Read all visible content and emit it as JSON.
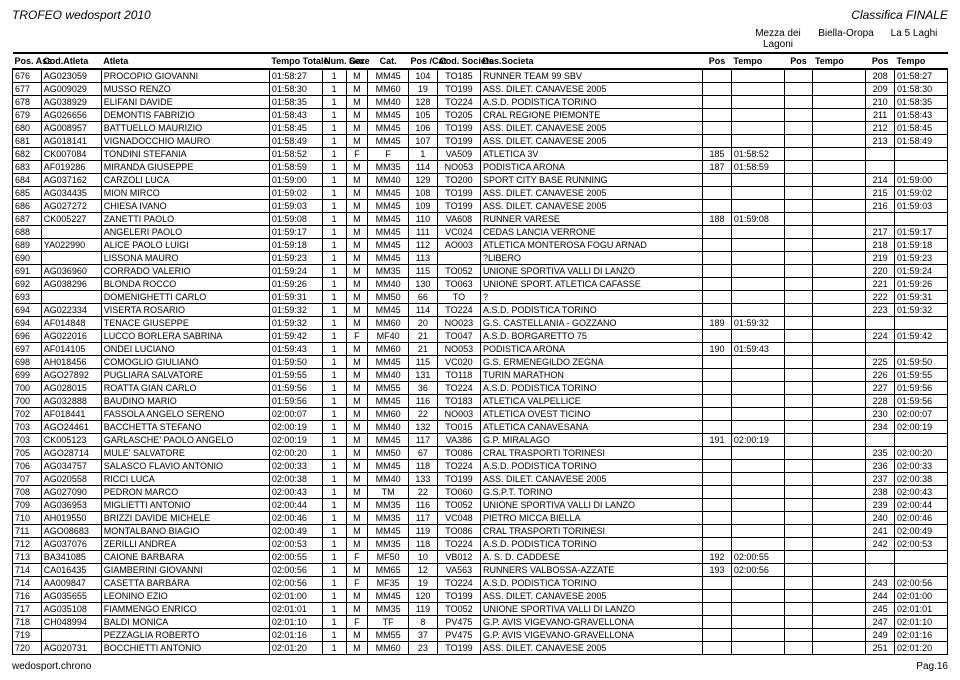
{
  "header": {
    "title_left": "TROFEO wedosport 2010",
    "title_right": "Classifica FINALE",
    "stages": [
      "Mezza dei Lagoni",
      "Biella-Oropa",
      "La 5 Laghi"
    ]
  },
  "columns": {
    "pos": "Pos. Ass.",
    "cod": "Cod.Atleta",
    "atleta": "Atleta",
    "tempo": "Tempo Totale",
    "num": "Num. Gare",
    "sex": "Sex",
    "cat": "Cat.",
    "poscat": "Pos /Cat",
    "codsoc": "Cod. Societa",
    "soc": "Des.Societa",
    "spos": "Pos",
    "stempo": "Tempo"
  },
  "rows": [
    {
      "pos": "676",
      "cod": "AG023059",
      "atl": "PROCOPIO GIOVANNI",
      "tempo": "01:58:27",
      "num": "1",
      "sex": "M",
      "cat": "MM45",
      "pcat": "104",
      "csoc": "TO185",
      "soc": "RUNNER TEAM 99 SBV",
      "s1p": "",
      "s1t": "",
      "s2p": "",
      "s2t": "",
      "s3p": "208",
      "s3t": "01:58:27"
    },
    {
      "pos": "677",
      "cod": "AG009029",
      "atl": "MUSSO RENZO",
      "tempo": "01:58:30",
      "num": "1",
      "sex": "M",
      "cat": "MM60",
      "pcat": "19",
      "csoc": "TO199",
      "soc": "ASS. DILET. CANAVESE 2005",
      "s1p": "",
      "s1t": "",
      "s2p": "",
      "s2t": "",
      "s3p": "209",
      "s3t": "01:58:30"
    },
    {
      "pos": "678",
      "cod": "AG038929",
      "atl": "ELIFANI DAVIDE",
      "tempo": "01:58:35",
      "num": "1",
      "sex": "M",
      "cat": "MM40",
      "pcat": "128",
      "csoc": "TO224",
      "soc": "A.S.D. PODISTICA TORINO",
      "s1p": "",
      "s1t": "",
      "s2p": "",
      "s2t": "",
      "s3p": "210",
      "s3t": "01:58:35"
    },
    {
      "pos": "679",
      "cod": "AG026656",
      "atl": "DEMONTIS FABRIZIO",
      "tempo": "01:58:43",
      "num": "1",
      "sex": "M",
      "cat": "MM45",
      "pcat": "105",
      "csoc": "TO205",
      "soc": "CRAL REGIONE PIEMONTE",
      "s1p": "",
      "s1t": "",
      "s2p": "",
      "s2t": "",
      "s3p": "211",
      "s3t": "01:58:43"
    },
    {
      "pos": "680",
      "cod": "AG008957",
      "atl": "BATTUELLO MAURIZIO",
      "tempo": "01:58:45",
      "num": "1",
      "sex": "M",
      "cat": "MM45",
      "pcat": "106",
      "csoc": "TO199",
      "soc": "ASS. DILET. CANAVESE 2005",
      "s1p": "",
      "s1t": "",
      "s2p": "",
      "s2t": "",
      "s3p": "212",
      "s3t": "01:58:45"
    },
    {
      "pos": "681",
      "cod": "AG018141",
      "atl": "VIGNADOCCHIO MAURO",
      "tempo": "01:58:49",
      "num": "1",
      "sex": "M",
      "cat": "MM45",
      "pcat": "107",
      "csoc": "TO199",
      "soc": "ASS. DILET. CANAVESE 2005",
      "s1p": "",
      "s1t": "",
      "s2p": "",
      "s2t": "",
      "s3p": "213",
      "s3t": "01:58:49"
    },
    {
      "pos": "682",
      "cod": "CK007084",
      "atl": "TONDINI STEFANIA",
      "tempo": "01:58:52",
      "num": "1",
      "sex": "F",
      "cat": "F",
      "pcat": "1",
      "csoc": "VA509",
      "soc": "ATLETICA 3V",
      "s1p": "185",
      "s1t": "01:58:52",
      "s2p": "",
      "s2t": "",
      "s3p": "",
      "s3t": ""
    },
    {
      "pos": "683",
      "cod": "AF019286",
      "atl": "MIRANDA GIUSEPPE",
      "tempo": "01:58:59",
      "num": "1",
      "sex": "M",
      "cat": "MM35",
      "pcat": "114",
      "csoc": "NO053",
      "soc": "PODISTICA ARONA",
      "s1p": "187",
      "s1t": "01:58:59",
      "s2p": "",
      "s2t": "",
      "s3p": "",
      "s3t": ""
    },
    {
      "pos": "684",
      "cod": "AG037162",
      "atl": "CARZOLI LUCA",
      "tempo": "01:59:00",
      "num": "1",
      "sex": "M",
      "cat": "MM40",
      "pcat": "129",
      "csoc": "TO200",
      "soc": "SPORT CITY BASE RUNNING",
      "s1p": "",
      "s1t": "",
      "s2p": "",
      "s2t": "",
      "s3p": "214",
      "s3t": "01:59:00"
    },
    {
      "pos": "685",
      "cod": "AG034435",
      "atl": "MION MIRCO",
      "tempo": "01:59:02",
      "num": "1",
      "sex": "M",
      "cat": "MM45",
      "pcat": "108",
      "csoc": "TO199",
      "soc": "ASS. DILET. CANAVESE 2005",
      "s1p": "",
      "s1t": "",
      "s2p": "",
      "s2t": "",
      "s3p": "215",
      "s3t": "01:59:02"
    },
    {
      "pos": "686",
      "cod": "AG027272",
      "atl": "CHIESA IVANO",
      "tempo": "01:59:03",
      "num": "1",
      "sex": "M",
      "cat": "MM45",
      "pcat": "109",
      "csoc": "TO199",
      "soc": "ASS. DILET. CANAVESE 2005",
      "s1p": "",
      "s1t": "",
      "s2p": "",
      "s2t": "",
      "s3p": "216",
      "s3t": "01:59:03"
    },
    {
      "pos": "687",
      "cod": "CK005227",
      "atl": "ZANETTI PAOLO",
      "tempo": "01:59:08",
      "num": "1",
      "sex": "M",
      "cat": "MM45",
      "pcat": "110",
      "csoc": "VA608",
      "soc": "RUNNER VARESE",
      "s1p": "188",
      "s1t": "01:59:08",
      "s2p": "",
      "s2t": "",
      "s3p": "",
      "s3t": ""
    },
    {
      "pos": "688",
      "cod": "",
      "atl": "ANGELERI PAOLO",
      "tempo": "01:59:17",
      "num": "1",
      "sex": "M",
      "cat": "MM45",
      "pcat": "111",
      "csoc": "VC024",
      "soc": "CEDAS LANCIA VERRONE",
      "s1p": "",
      "s1t": "",
      "s2p": "",
      "s2t": "",
      "s3p": "217",
      "s3t": "01:59:17"
    },
    {
      "pos": "689",
      "cod": "YA022990",
      "atl": "ALICE PAOLO LUIGI",
      "tempo": "01:59:18",
      "num": "1",
      "sex": "M",
      "cat": "MM45",
      "pcat": "112",
      "csoc": "AO003",
      "soc": "ATLETICA MONTEROSA FOGU ARNAD",
      "s1p": "",
      "s1t": "",
      "s2p": "",
      "s2t": "",
      "s3p": "218",
      "s3t": "01:59:18"
    },
    {
      "pos": "690",
      "cod": "",
      "atl": "LISSONA MAURO",
      "tempo": "01:59:23",
      "num": "1",
      "sex": "M",
      "cat": "MM45",
      "pcat": "113",
      "csoc": "",
      "soc": "?LIBERO",
      "s1p": "",
      "s1t": "",
      "s2p": "",
      "s2t": "",
      "s3p": "219",
      "s3t": "01:59:23"
    },
    {
      "pos": "691",
      "cod": "AG036960",
      "atl": "CORRADO VALERIO",
      "tempo": "01:59:24",
      "num": "1",
      "sex": "M",
      "cat": "MM35",
      "pcat": "115",
      "csoc": "TO052",
      "soc": "UNIONE SPORTIVA VALLI DI LANZO",
      "s1p": "",
      "s1t": "",
      "s2p": "",
      "s2t": "",
      "s3p": "220",
      "s3t": "01:59:24"
    },
    {
      "pos": "692",
      "cod": "AG038296",
      "atl": "BLONDA ROCCO",
      "tempo": "01:59:26",
      "num": "1",
      "sex": "M",
      "cat": "MM40",
      "pcat": "130",
      "csoc": "TO063",
      "soc": "UNIONE SPORT. ATLETICA CAFASSE",
      "s1p": "",
      "s1t": "",
      "s2p": "",
      "s2t": "",
      "s3p": "221",
      "s3t": "01:59:26"
    },
    {
      "pos": "693",
      "cod": "",
      "atl": "DOMENIGHETTI CARLO",
      "tempo": "01:59:31",
      "num": "1",
      "sex": "M",
      "cat": "MM50",
      "pcat": "66",
      "csoc": "TO",
      "soc": "?",
      "s1p": "",
      "s1t": "",
      "s2p": "",
      "s2t": "",
      "s3p": "222",
      "s3t": "01:59:31"
    },
    {
      "pos": "694",
      "cod": "AG022334",
      "atl": "VISERTA ROSARIO",
      "tempo": "01:59:32",
      "num": "1",
      "sex": "M",
      "cat": "MM45",
      "pcat": "114",
      "csoc": "TO224",
      "soc": "A.S.D. PODISTICA TORINO",
      "s1p": "",
      "s1t": "",
      "s2p": "",
      "s2t": "",
      "s3p": "223",
      "s3t": "01:59:32"
    },
    {
      "pos": "694",
      "cod": "AF014848",
      "atl": "TENACE GIUSEPPE",
      "tempo": "01:59:32",
      "num": "1",
      "sex": "M",
      "cat": "MM60",
      "pcat": "20",
      "csoc": "NO023",
      "soc": "G.S. CASTELLANIA - GOZZANO",
      "s1p": "189",
      "s1t": "01:59:32",
      "s2p": "",
      "s2t": "",
      "s3p": "",
      "s3t": ""
    },
    {
      "pos": "696",
      "cod": "AG022016",
      "atl": "LUCCO BORLERA SABRINA",
      "tempo": "01:59:42",
      "num": "1",
      "sex": "F",
      "cat": "MF40",
      "pcat": "21",
      "csoc": "TO047",
      "soc": "A.S.D. BORGARETTO 75",
      "s1p": "",
      "s1t": "",
      "s2p": "",
      "s2t": "",
      "s3p": "224",
      "s3t": "01:59:42"
    },
    {
      "pos": "697",
      "cod": "AF014105",
      "atl": "ONDEI LUCIANO",
      "tempo": "01:59:43",
      "num": "1",
      "sex": "M",
      "cat": "MM60",
      "pcat": "21",
      "csoc": "NO053",
      "soc": "PODISTICA ARONA",
      "s1p": "190",
      "s1t": "01:59:43",
      "s2p": "",
      "s2t": "",
      "s3p": "",
      "s3t": ""
    },
    {
      "pos": "698",
      "cod": "AH018456",
      "atl": "COMOGLIO GIULIANO",
      "tempo": "01:59:50",
      "num": "1",
      "sex": "M",
      "cat": "MM45",
      "pcat": "115",
      "csoc": "VC020",
      "soc": "G.S. ERMENEGILDO ZEGNA",
      "s1p": "",
      "s1t": "",
      "s2p": "",
      "s2t": "",
      "s3p": "225",
      "s3t": "01:59:50"
    },
    {
      "pos": "699",
      "cod": "AGO27892",
      "atl": "PUGLIARA SALVATORE",
      "tempo": "01:59:55",
      "num": "1",
      "sex": "M",
      "cat": "MM40",
      "pcat": "131",
      "csoc": "TO118",
      "soc": "TURIN MARATHON",
      "s1p": "",
      "s1t": "",
      "s2p": "",
      "s2t": "",
      "s3p": "226",
      "s3t": "01:59:55"
    },
    {
      "pos": "700",
      "cod": "AG028015",
      "atl": "ROATTA GIAN CARLO",
      "tempo": "01:59:56",
      "num": "1",
      "sex": "M",
      "cat": "MM55",
      "pcat": "36",
      "csoc": "TO224",
      "soc": "A.S.D. PODISTICA TORINO",
      "s1p": "",
      "s1t": "",
      "s2p": "",
      "s2t": "",
      "s3p": "227",
      "s3t": "01:59:56"
    },
    {
      "pos": "700",
      "cod": "AG032888",
      "atl": "BAUDINO MARIO",
      "tempo": "01:59:56",
      "num": "1",
      "sex": "M",
      "cat": "MM45",
      "pcat": "116",
      "csoc": "TO183",
      "soc": "ATLETICA VALPELLICE",
      "s1p": "",
      "s1t": "",
      "s2p": "",
      "s2t": "",
      "s3p": "228",
      "s3t": "01:59:56"
    },
    {
      "pos": "702",
      "cod": "AF018441",
      "atl": "FASSOLA ANGELO SERENO",
      "tempo": "02:00:07",
      "num": "1",
      "sex": "M",
      "cat": "MM60",
      "pcat": "22",
      "csoc": "NO003",
      "soc": "ATLETICA OVEST TICINO",
      "s1p": "",
      "s1t": "",
      "s2p": "",
      "s2t": "",
      "s3p": "230",
      "s3t": "02:00:07"
    },
    {
      "pos": "703",
      "cod": "AGO24461",
      "atl": "BACCHETTA STEFANO",
      "tempo": "02:00:19",
      "num": "1",
      "sex": "M",
      "cat": "MM40",
      "pcat": "132",
      "csoc": "TO015",
      "soc": "ATLETICA CANAVESANA",
      "s1p": "",
      "s1t": "",
      "s2p": "",
      "s2t": "",
      "s3p": "234",
      "s3t": "02:00:19"
    },
    {
      "pos": "703",
      "cod": "CK005123",
      "atl": "GARLASCHE' PAOLO ANGELO",
      "tempo": "02:00:19",
      "num": "1",
      "sex": "M",
      "cat": "MM45",
      "pcat": "117",
      "csoc": "VA386",
      "soc": "G.P. MIRALAGO",
      "s1p": "191",
      "s1t": "02:00:19",
      "s2p": "",
      "s2t": "",
      "s3p": "",
      "s3t": ""
    },
    {
      "pos": "705",
      "cod": "AGO28714",
      "atl": "MULE' SALVATORE",
      "tempo": "02:00:20",
      "num": "1",
      "sex": "M",
      "cat": "MM50",
      "pcat": "67",
      "csoc": "TO086",
      "soc": "CRAL TRASPORTI TORINESI",
      "s1p": "",
      "s1t": "",
      "s2p": "",
      "s2t": "",
      "s3p": "235",
      "s3t": "02:00:20"
    },
    {
      "pos": "706",
      "cod": "AG034757",
      "atl": "SALASCO FLAVIO ANTONIO",
      "tempo": "02:00:33",
      "num": "1",
      "sex": "M",
      "cat": "MM45",
      "pcat": "118",
      "csoc": "TO224",
      "soc": "A.S.D. PODISTICA TORINO",
      "s1p": "",
      "s1t": "",
      "s2p": "",
      "s2t": "",
      "s3p": "236",
      "s3t": "02:00:33"
    },
    {
      "pos": "707",
      "cod": "AG020558",
      "atl": "RICCI LUCA",
      "tempo": "02:00:38",
      "num": "1",
      "sex": "M",
      "cat": "MM40",
      "pcat": "133",
      "csoc": "TO199",
      "soc": "ASS. DILET. CANAVESE 2005",
      "s1p": "",
      "s1t": "",
      "s2p": "",
      "s2t": "",
      "s3p": "237",
      "s3t": "02:00:38"
    },
    {
      "pos": "708",
      "cod": "AG027090",
      "atl": "PEDRON MARCO",
      "tempo": "02:00:43",
      "num": "1",
      "sex": "M",
      "cat": "TM",
      "pcat": "22",
      "csoc": "TO060",
      "soc": "G.S.P.T. TORINO",
      "s1p": "",
      "s1t": "",
      "s2p": "",
      "s2t": "",
      "s3p": "238",
      "s3t": "02:00:43"
    },
    {
      "pos": "709",
      "cod": "AG036953",
      "atl": "MIGLIETTI ANTONIO",
      "tempo": "02:00:44",
      "num": "1",
      "sex": "M",
      "cat": "MM35",
      "pcat": "116",
      "csoc": "TO052",
      "soc": "UNIONE SPORTIVA VALLI DI LANZO",
      "s1p": "",
      "s1t": "",
      "s2p": "",
      "s2t": "",
      "s3p": "239",
      "s3t": "02:00:44"
    },
    {
      "pos": "710",
      "cod": "AH019550",
      "atl": "BRIZZI DAVIDE MICHELE",
      "tempo": "02:00:46",
      "num": "1",
      "sex": "M",
      "cat": "MM35",
      "pcat": "117",
      "csoc": "VC048",
      "soc": "PIETRO MICCA BIELLA",
      "s1p": "",
      "s1t": "",
      "s2p": "",
      "s2t": "",
      "s3p": "240",
      "s3t": "02:00:46"
    },
    {
      "pos": "711",
      "cod": "AGO08683",
      "atl": "MONTALBANO BIAGIO",
      "tempo": "02:00:49",
      "num": "1",
      "sex": "M",
      "cat": "MM45",
      "pcat": "119",
      "csoc": "TO086",
      "soc": "CRAL TRASPORTI TORINESI",
      "s1p": "",
      "s1t": "",
      "s2p": "",
      "s2t": "",
      "s3p": "241",
      "s3t": "02:00:49"
    },
    {
      "pos": "712",
      "cod": "AG037076",
      "atl": "ZERILLI ANDREA",
      "tempo": "02:00:53",
      "num": "1",
      "sex": "M",
      "cat": "MM35",
      "pcat": "118",
      "csoc": "TO224",
      "soc": "A.S.D. PODISTICA TORINO",
      "s1p": "",
      "s1t": "",
      "s2p": "",
      "s2t": "",
      "s3p": "242",
      "s3t": "02:00:53"
    },
    {
      "pos": "713",
      "cod": "BA341085",
      "atl": "CAIONE BARBARA",
      "tempo": "02:00:55",
      "num": "1",
      "sex": "F",
      "cat": "MF50",
      "pcat": "10",
      "csoc": "VB012",
      "soc": "A. S. D. CADDESE",
      "s1p": "192",
      "s1t": "02:00:55",
      "s2p": "",
      "s2t": "",
      "s3p": "",
      "s3t": ""
    },
    {
      "pos": "714",
      "cod": "CA016435",
      "atl": "GIAMBERINI GIOVANNI",
      "tempo": "02:00:56",
      "num": "1",
      "sex": "M",
      "cat": "MM65",
      "pcat": "12",
      "csoc": "VA563",
      "soc": "RUNNERS VALBOSSA-AZZATE",
      "s1p": "193",
      "s1t": "02:00:56",
      "s2p": "",
      "s2t": "",
      "s3p": "",
      "s3t": ""
    },
    {
      "pos": "714",
      "cod": "AA009847",
      "atl": "CASETTA BARBARA",
      "tempo": "02:00:56",
      "num": "1",
      "sex": "F",
      "cat": "MF35",
      "pcat": "19",
      "csoc": "TO224",
      "soc": "A.S.D. PODISTICA TORINO",
      "s1p": "",
      "s1t": "",
      "s2p": "",
      "s2t": "",
      "s3p": "243",
      "s3t": "02:00:56"
    },
    {
      "pos": "716",
      "cod": "AG035655",
      "atl": "LEONINO EZIO",
      "tempo": "02:01:00",
      "num": "1",
      "sex": "M",
      "cat": "MM45",
      "pcat": "120",
      "csoc": "TO199",
      "soc": "ASS. DILET. CANAVESE 2005",
      "s1p": "",
      "s1t": "",
      "s2p": "",
      "s2t": "",
      "s3p": "244",
      "s3t": "02:01:00"
    },
    {
      "pos": "717",
      "cod": "AG035108",
      "atl": "FIAMMENGO ENRICO",
      "tempo": "02:01:01",
      "num": "1",
      "sex": "M",
      "cat": "MM35",
      "pcat": "119",
      "csoc": "TO052",
      "soc": "UNIONE SPORTIVA VALLI DI LANZO",
      "s1p": "",
      "s1t": "",
      "s2p": "",
      "s2t": "",
      "s3p": "245",
      "s3t": "02:01:01"
    },
    {
      "pos": "718",
      "cod": "CH048994",
      "atl": "BALDI MONICA",
      "tempo": "02:01:10",
      "num": "1",
      "sex": "F",
      "cat": "TF",
      "pcat": "8",
      "csoc": "PV475",
      "soc": "G.P. AVIS VIGEVANO-GRAVELLONA",
      "s1p": "",
      "s1t": "",
      "s2p": "",
      "s2t": "",
      "s3p": "247",
      "s3t": "02:01:10"
    },
    {
      "pos": "719",
      "cod": "",
      "atl": "PEZZAGLIA ROBERTO",
      "tempo": "02:01:16",
      "num": "1",
      "sex": "M",
      "cat": "MM55",
      "pcat": "37",
      "csoc": "PV475",
      "soc": "G.P. AVIS VIGEVANO-GRAVELLONA",
      "s1p": "",
      "s1t": "",
      "s2p": "",
      "s2t": "",
      "s3p": "249",
      "s3t": "02:01:16"
    },
    {
      "pos": "720",
      "cod": "AG020731",
      "atl": "BOCCHIETTI ANTONIO",
      "tempo": "02:01:20",
      "num": "1",
      "sex": "M",
      "cat": "MM60",
      "pcat": "23",
      "csoc": "TO199",
      "soc": "ASS. DILET. CANAVESE 2005",
      "s1p": "",
      "s1t": "",
      "s2p": "",
      "s2t": "",
      "s3p": "251",
      "s3t": "02:01:20"
    }
  ],
  "footer": {
    "left": "wedosport.chrono",
    "right": "Pag.16"
  }
}
